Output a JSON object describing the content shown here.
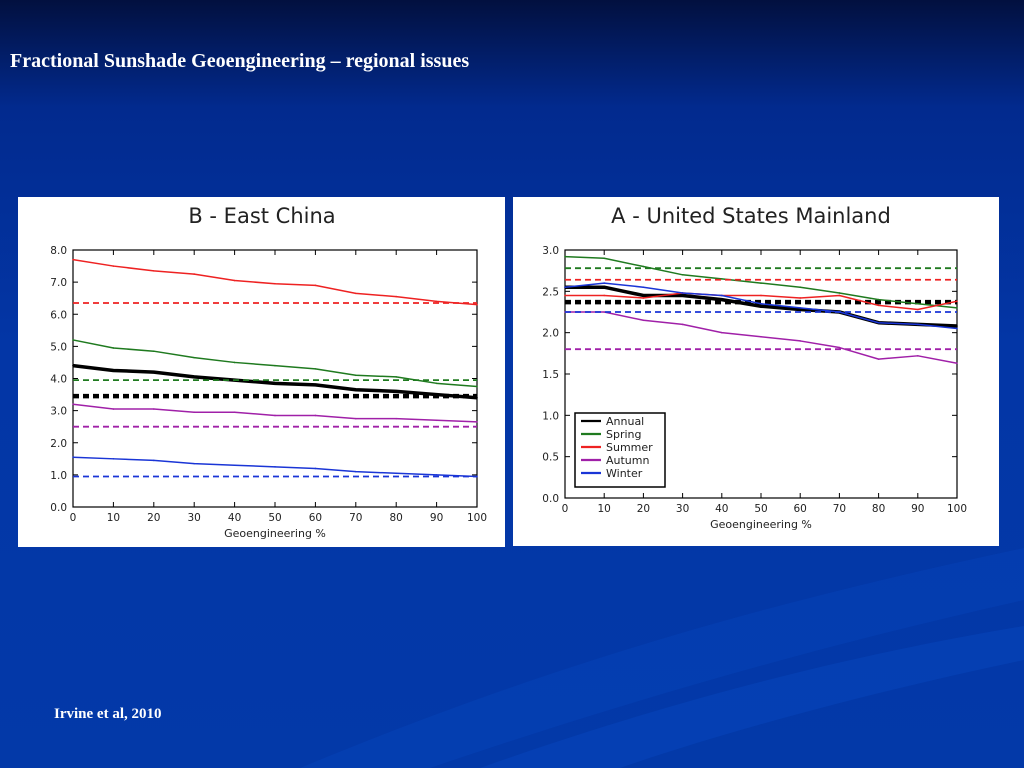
{
  "slide": {
    "title": "Fractional Sunshade Geoengineering – regional issues",
    "citation": "Irvine et al, 2010"
  },
  "colors": {
    "background": "#0336a6",
    "Annual": "#000000",
    "Spring": "#1f7a1f",
    "Summer": "#ee2222",
    "Autumn": "#a020a8",
    "Winter": "#1a35d6"
  },
  "chart_data": [
    {
      "type": "line",
      "title": "B - East China",
      "xlabel": "Geoengineering %",
      "ylabel": "",
      "x": [
        0,
        10,
        20,
        30,
        40,
        50,
        60,
        70,
        80,
        90,
        100
      ],
      "xlim": [
        0,
        100
      ],
      "ylim": [
        0,
        8
      ],
      "xticks": [
        "0",
        "10",
        "20",
        "30",
        "40",
        "50",
        "60",
        "70",
        "80",
        "90",
        "100"
      ],
      "yticks": [
        "0.0",
        "1.0",
        "2.0",
        "3.0",
        "4.0",
        "5.0",
        "6.0",
        "7.0",
        "8.0"
      ],
      "grid": false,
      "legend": null,
      "series": [
        {
          "key": "Annual",
          "values": [
            4.4,
            4.25,
            4.2,
            4.05,
            3.95,
            3.85,
            3.8,
            3.65,
            3.6,
            3.5,
            3.4
          ],
          "baseline": 3.45
        },
        {
          "key": "Spring",
          "values": [
            5.2,
            4.95,
            4.85,
            4.65,
            4.5,
            4.4,
            4.3,
            4.1,
            4.05,
            3.85,
            3.75
          ],
          "baseline": 3.95
        },
        {
          "key": "Summer",
          "values": [
            7.7,
            7.5,
            7.35,
            7.25,
            7.05,
            6.95,
            6.9,
            6.65,
            6.55,
            6.4,
            6.3
          ],
          "baseline": 6.35
        },
        {
          "key": "Autumn",
          "values": [
            3.2,
            3.05,
            3.05,
            2.95,
            2.95,
            2.85,
            2.85,
            2.75,
            2.75,
            2.7,
            2.65
          ],
          "baseline": 2.5
        },
        {
          "key": "Winter",
          "values": [
            1.55,
            1.5,
            1.45,
            1.35,
            1.3,
            1.25,
            1.2,
            1.1,
            1.05,
            1.0,
            0.95
          ],
          "baseline": 0.95
        }
      ]
    },
    {
      "type": "line",
      "title": "A - United States Mainland",
      "xlabel": "Geoengineering %",
      "ylabel": "",
      "x": [
        0,
        10,
        20,
        30,
        40,
        50,
        60,
        70,
        80,
        90,
        100
      ],
      "xlim": [
        0,
        100
      ],
      "ylim": [
        0,
        3
      ],
      "xticks": [
        "0",
        "10",
        "20",
        "30",
        "40",
        "50",
        "60",
        "70",
        "80",
        "90",
        "100"
      ],
      "yticks": [
        "0.0",
        "0.5",
        "1.0",
        "1.5",
        "2.0",
        "2.5",
        "3.0"
      ],
      "grid": false,
      "legend": {
        "position": "bottom-left",
        "entries": [
          {
            "key": "Annual",
            "name": "Annual"
          },
          {
            "key": "Spring",
            "name": "Spring"
          },
          {
            "key": "Summer",
            "name": "Summer"
          },
          {
            "key": "Autumn",
            "name": "Autumn"
          },
          {
            "key": "Winter",
            "name": "Winter"
          }
        ]
      },
      "series": [
        {
          "key": "Annual",
          "values": [
            2.55,
            2.55,
            2.45,
            2.45,
            2.4,
            2.32,
            2.28,
            2.25,
            2.12,
            2.1,
            2.08
          ],
          "baseline": 2.37
        },
        {
          "key": "Spring",
          "values": [
            2.92,
            2.9,
            2.8,
            2.7,
            2.65,
            2.6,
            2.55,
            2.48,
            2.4,
            2.35,
            2.3
          ],
          "baseline": 2.78
        },
        {
          "key": "Summer",
          "values": [
            2.45,
            2.45,
            2.42,
            2.48,
            2.45,
            2.45,
            2.42,
            2.45,
            2.33,
            2.28,
            2.38
          ],
          "baseline": 2.64
        },
        {
          "key": "Autumn",
          "values": [
            2.25,
            2.25,
            2.15,
            2.1,
            2.0,
            1.95,
            1.9,
            1.82,
            1.68,
            1.72,
            1.63
          ],
          "baseline": 1.8
        },
        {
          "key": "Winter",
          "values": [
            2.55,
            2.6,
            2.55,
            2.48,
            2.45,
            2.35,
            2.3,
            2.25,
            2.12,
            2.1,
            2.05
          ],
          "baseline": 2.25
        }
      ]
    }
  ]
}
